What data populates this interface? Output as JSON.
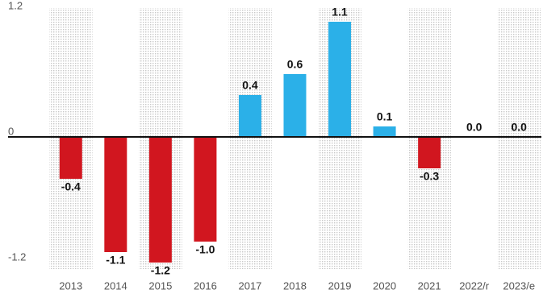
{
  "chart_data": {
    "type": "bar",
    "categories": [
      "2013",
      "2014",
      "2015",
      "2016",
      "2017",
      "2018",
      "2019",
      "2020",
      "2021",
      "2022/r",
      "2023/e"
    ],
    "values": [
      -0.4,
      -1.1,
      -1.2,
      -1.0,
      0.4,
      0.6,
      1.1,
      0.1,
      -0.3,
      0.0,
      0.0
    ],
    "value_labels": [
      "-0.4",
      "-1.1",
      "-1.2",
      "-1.0",
      "0.4",
      "0.6",
      "1.1",
      "0.1",
      "-0.3",
      "0.0",
      "0.0"
    ],
    "colors": [
      "#d1161f",
      "#d1161f",
      "#d1161f",
      "#d1161f",
      "#2bb0e8",
      "#2bb0e8",
      "#2bb0e8",
      "#2bb0e8",
      "#d1161f",
      "#2bb0e8",
      "#2bb0e8"
    ],
    "ylim": [
      -1.2,
      1.2
    ],
    "yticks": [
      -1.2,
      0,
      1.2
    ],
    "grid": false
  }
}
